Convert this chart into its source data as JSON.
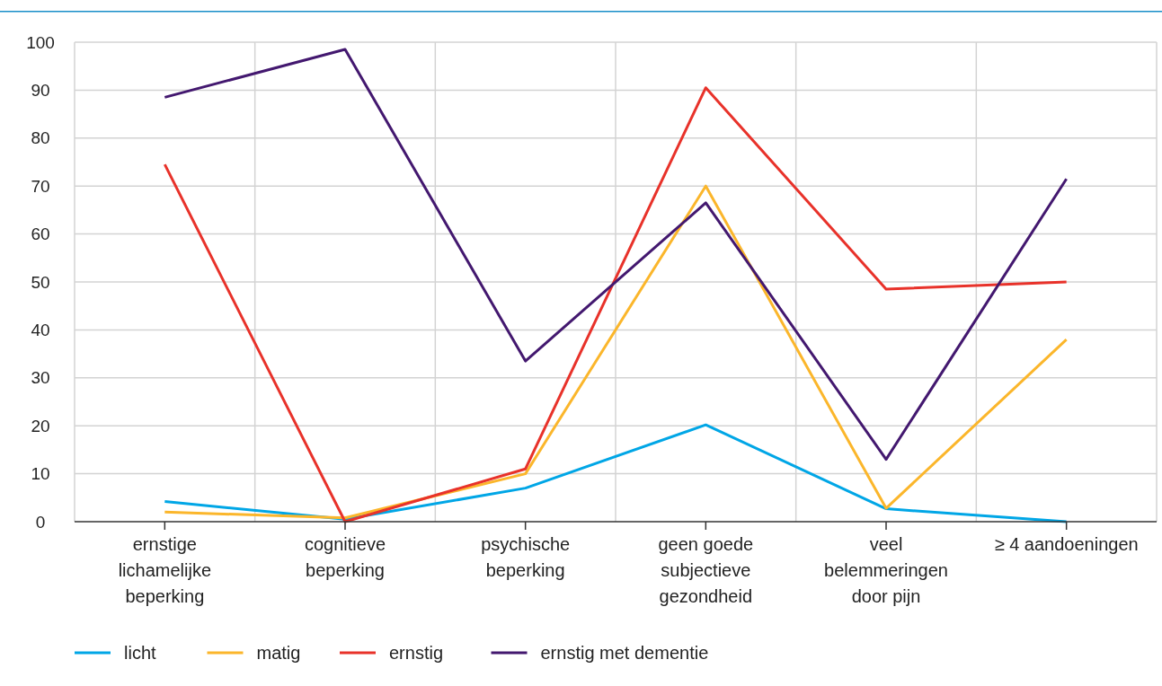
{
  "chart_data": {
    "type": "line",
    "categories": [
      "ernstige lichamelijke beperking",
      "cognitieve beperking",
      "psychische beperking",
      "geen goede subjectieve gezondheid",
      "veel belemmeringen door pijn",
      "≥ 4 aandoeningen"
    ],
    "series": [
      {
        "name": "licht",
        "color": "#00a6e6",
        "values": [
          4.2,
          0.5,
          7,
          20.2,
          2.7,
          0
        ]
      },
      {
        "name": "matig",
        "color": "#fbb62b",
        "values": [
          2,
          0.8,
          10,
          70,
          2.8,
          38
        ]
      },
      {
        "name": "ernstig",
        "color": "#e8322a",
        "values": [
          74.5,
          0,
          11,
          90.5,
          48.5,
          50
        ]
      },
      {
        "name": "ernstig met dementie",
        "color": "#43186f",
        "values": [
          88.5,
          98.5,
          33.5,
          66.5,
          13,
          71.5
        ]
      }
    ],
    "ylim": [
      0,
      100
    ],
    "yticks": [
      0,
      10,
      20,
      30,
      40,
      50,
      60,
      70,
      80,
      90,
      100
    ],
    "grid": true,
    "legend": "bottom left",
    "marker": "none",
    "line_style": "solid"
  }
}
